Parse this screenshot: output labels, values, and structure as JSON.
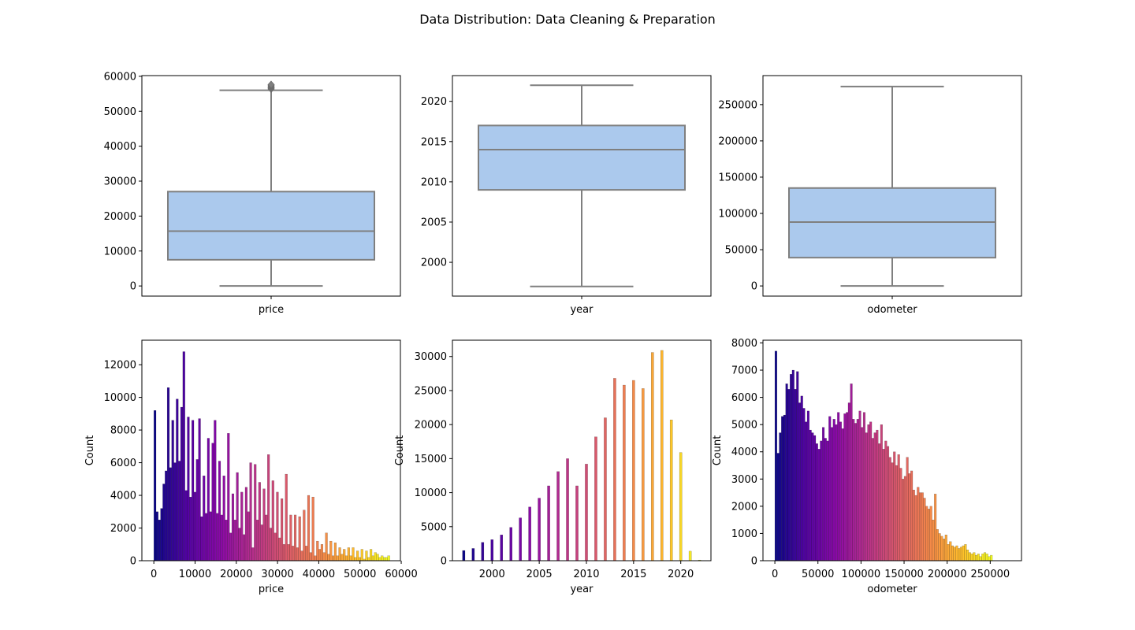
{
  "figure": {
    "title": "Data Distribution: Data Cleaning & Preparation"
  },
  "style": {
    "box_fill": "#abc9ed",
    "box_line": "#7f7f7f",
    "hist_colormap": "plasma",
    "hist_edge": "#000000"
  },
  "chart_data": [
    {
      "type": "box",
      "title": "",
      "xlabel": "price",
      "ylabel": "",
      "ylim": [
        -2900,
        60200
      ],
      "yticks": [
        0,
        10000,
        20000,
        30000,
        40000,
        50000,
        60000
      ],
      "stats": {
        "whisker_low": 0,
        "q1": 7500,
        "median": 15700,
        "q3": 27000,
        "whisker_high": 56000
      },
      "outliers": [
        56400,
        56700,
        57000,
        57300,
        57600
      ]
    },
    {
      "type": "box",
      "title": "",
      "xlabel": "year",
      "ylabel": "",
      "ylim": [
        1995.8,
        2023.2
      ],
      "yticks": [
        2000,
        2005,
        2010,
        2015,
        2020
      ],
      "stats": {
        "whisker_low": 1997,
        "q1": 2009,
        "median": 2014,
        "q3": 2017,
        "whisker_high": 2022
      },
      "outliers": []
    },
    {
      "type": "box",
      "title": "",
      "xlabel": "odometer",
      "ylabel": "",
      "ylim": [
        -14000,
        290000
      ],
      "yticks": [
        0,
        50000,
        100000,
        150000,
        200000,
        250000
      ],
      "stats": {
        "whisker_low": 0,
        "q1": 39000,
        "median": 88000,
        "q3": 135000,
        "whisker_high": 275000
      },
      "outliers": []
    },
    {
      "type": "bar",
      "title": "",
      "xlabel": "price",
      "ylabel": "Count",
      "xlim": [
        -2900,
        59800
      ],
      "ylim": [
        0,
        13500
      ],
      "xticks": [
        0,
        10000,
        20000,
        30000,
        40000,
        50000,
        60000
      ],
      "yticks": [
        0,
        2000,
        4000,
        6000,
        8000,
        10000,
        12000
      ],
      "bin_width": 540,
      "x": [
        270,
        810,
        1350,
        1890,
        2430,
        2970,
        3510,
        4050,
        4590,
        5130,
        5670,
        6210,
        6750,
        7290,
        7830,
        8370,
        8910,
        9450,
        9990,
        10530,
        11070,
        11610,
        12150,
        12690,
        13230,
        13770,
        14310,
        14850,
        15390,
        15930,
        16470,
        17010,
        17550,
        18090,
        18630,
        19170,
        19710,
        20250,
        20790,
        21330,
        21870,
        22410,
        22950,
        23490,
        24030,
        24570,
        25110,
        25650,
        26190,
        26730,
        27270,
        27810,
        28350,
        28890,
        29430,
        29970,
        30510,
        31050,
        31590,
        32130,
        32670,
        33210,
        33750,
        34290,
        34830,
        35370,
        35910,
        36450,
        36990,
        37530,
        38070,
        38610,
        39150,
        39690,
        40230,
        40770,
        41310,
        41850,
        42390,
        42930,
        43470,
        44010,
        44550,
        45090,
        45630,
        46170,
        46710,
        47250,
        47790,
        48330,
        48870,
        49410,
        49950,
        50490,
        51030,
        51570,
        52110,
        52650,
        53190,
        53730,
        54270,
        54810,
        55350,
        55890,
        56430,
        56970
      ],
      "values": [
        9200,
        3000,
        2500,
        3200,
        4700,
        5500,
        10600,
        5700,
        8600,
        6000,
        9900,
        6100,
        9400,
        12800,
        4300,
        8800,
        3900,
        8600,
        4200,
        6200,
        8700,
        2700,
        5200,
        2900,
        7500,
        3000,
        7200,
        8600,
        2900,
        6100,
        2800,
        5200,
        2500,
        7800,
        1700,
        4100,
        2500,
        5400,
        2000,
        4200,
        1600,
        4500,
        3000,
        6000,
        800,
        5900,
        2500,
        4800,
        2200,
        4400,
        2800,
        6500,
        2000,
        4900,
        1700,
        4200,
        1400,
        3800,
        1000,
        5300,
        1000,
        2800,
        900,
        2800,
        800,
        2700,
        600,
        3100,
        900,
        4000,
        500,
        3900,
        300,
        1200,
        700,
        1000,
        500,
        1700,
        400,
        1200,
        300,
        1100,
        300,
        800,
        400,
        700,
        300,
        800,
        300,
        800,
        200,
        600,
        200,
        700,
        100,
        600,
        200,
        700,
        300,
        500,
        400,
        200,
        300,
        200,
        200,
        300
      ],
      "valueslide": []
    },
    {
      "type": "bar",
      "title": "",
      "xlabel": "year",
      "ylabel": "Count",
      "xlim": [
        1995.8,
        2023.2
      ],
      "ylim": [
        0,
        32400
      ],
      "xticks": [
        2000,
        2005,
        2010,
        2015,
        2020
      ],
      "yticks": [
        0,
        5000,
        10000,
        15000,
        20000,
        25000,
        30000
      ],
      "bar_width": 0.27,
      "x": [
        1997,
        1998,
        1999,
        2000,
        2001,
        2002,
        2003,
        2004,
        2005,
        2006,
        2007,
        2008,
        2009,
        2010,
        2011,
        2012,
        2013,
        2014,
        2015,
        2016,
        2017,
        2018,
        2019,
        2020,
        2021,
        2022
      ],
      "values": [
        1500,
        1800,
        2700,
        3100,
        3800,
        4900,
        6300,
        7900,
        9200,
        11000,
        13100,
        15000,
        11000,
        14200,
        18200,
        21000,
        26800,
        25800,
        26500,
        25300,
        30600,
        30900,
        20700,
        15900,
        1400,
        100
      ]
    },
    {
      "type": "bar",
      "title": "",
      "xlabel": "odometer",
      "ylabel": "Count",
      "xlim": [
        -13800,
        286300
      ],
      "ylim": [
        0,
        8100
      ],
      "xticks": [
        0,
        50000,
        100000,
        150000,
        200000,
        250000
      ],
      "yticks": [
        0,
        1000,
        2000,
        3000,
        4000,
        5000,
        6000,
        7000,
        8000
      ],
      "bin_width": 2500,
      "values": [
        7700,
        3950,
        4700,
        5300,
        5350,
        6500,
        6300,
        6850,
        7000,
        6300,
        6950,
        5800,
        6050,
        5600,
        5100,
        5500,
        4800,
        4700,
        4600,
        4300,
        4100,
        4400,
        4900,
        4500,
        4400,
        5300,
        4900,
        5200,
        5000,
        5450,
        5100,
        4850,
        5400,
        5450,
        5800,
        6500,
        5200,
        5050,
        5200,
        5500,
        4900,
        5450,
        4700,
        5000,
        5100,
        4500,
        4700,
        4800,
        4300,
        5000,
        4100,
        4400,
        4200,
        3800,
        3600,
        4000,
        3500,
        3900,
        3400,
        3000,
        3100,
        3800,
        3200,
        3300,
        2600,
        2400,
        2700,
        2500,
        2500,
        2300,
        2000,
        1900,
        2000,
        1500,
        2450,
        1150,
        1000,
        900,
        800,
        950,
        600,
        700,
        550,
        500,
        550,
        450,
        500,
        550,
        600,
        400,
        300,
        250,
        300,
        200,
        250,
        150,
        250,
        300,
        250,
        150,
        200
      ]
    }
  ]
}
